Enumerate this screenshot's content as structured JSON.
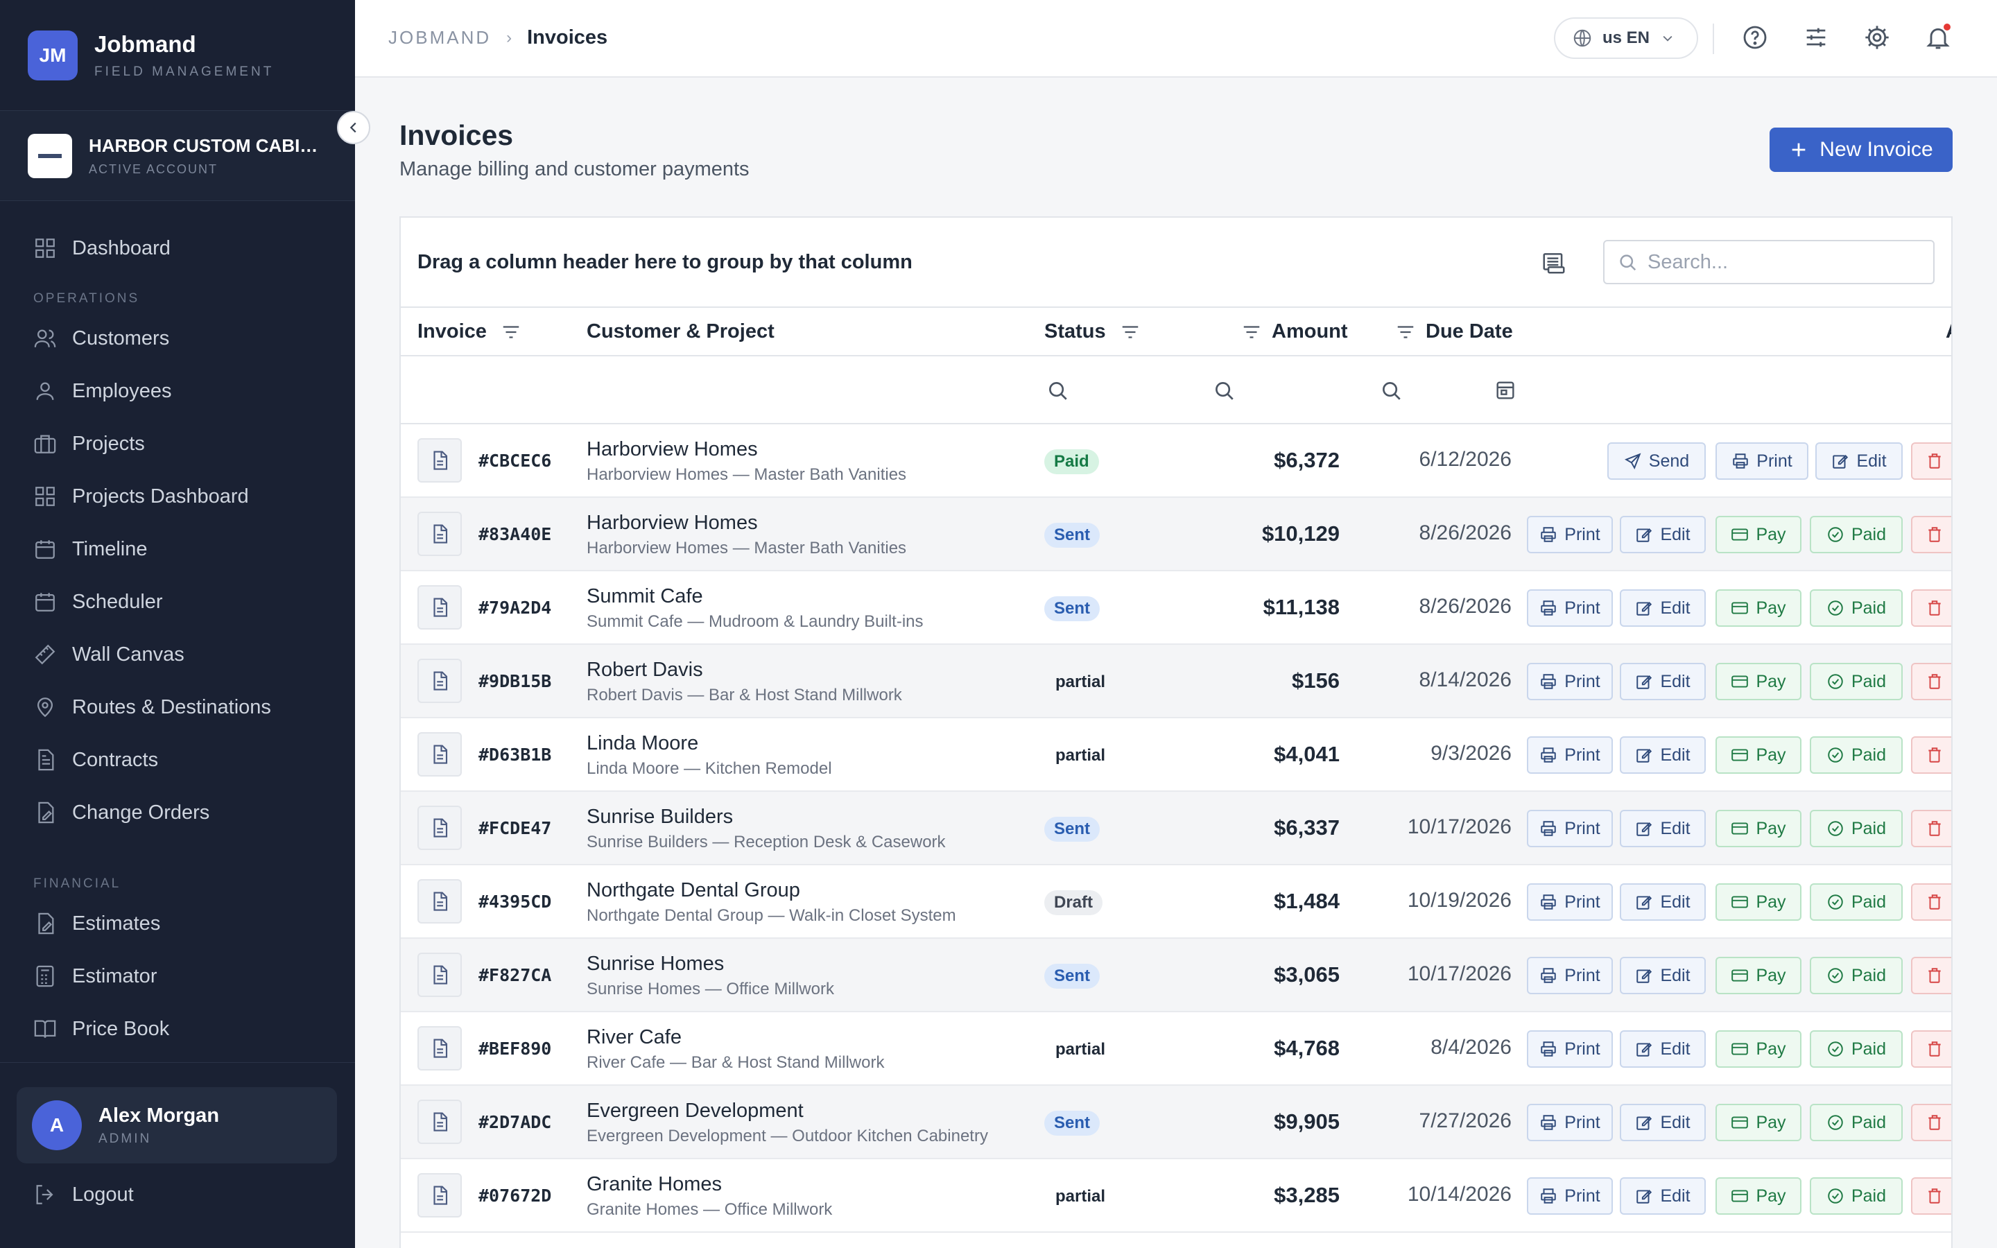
{
  "brand": {
    "initials": "JM",
    "name": "Jobmand",
    "subtitle": "FIELD MANAGEMENT"
  },
  "account": {
    "name": "HARBOR CUSTOM CABINETRY",
    "status": "ACTIVE ACCOUNT"
  },
  "nav": {
    "dashboard": "Dashboard",
    "section_operations": "OPERATIONS",
    "customers": "Customers",
    "employees": "Employees",
    "projects": "Projects",
    "projects_dashboard": "Projects Dashboard",
    "timeline": "Timeline",
    "scheduler": "Scheduler",
    "wall_canvas": "Wall Canvas",
    "routes": "Routes & Destinations",
    "contracts": "Contracts",
    "change_orders": "Change Orders",
    "section_financial": "FINANCIAL",
    "estimates": "Estimates",
    "estimator": "Estimator",
    "price_book": "Price Book"
  },
  "user": {
    "initial": "A",
    "name": "Alex Morgan",
    "role": "ADMIN",
    "logout": "Logout"
  },
  "topbar": {
    "crumb_root": "JOBMAND",
    "crumb_current": "Invoices",
    "language": "us EN"
  },
  "page": {
    "title": "Invoices",
    "subtitle": "Manage billing and customer payments",
    "new_button": "New Invoice"
  },
  "grid": {
    "group_hint": "Drag a column header here to group by that column",
    "search_placeholder": "Search...",
    "columns": {
      "invoice": "Invoice",
      "customer": "Customer & Project",
      "status": "Status",
      "amount": "Amount",
      "due": "Due Date",
      "actions_partial": "A"
    },
    "buttons": {
      "send": "Send",
      "print": "Print",
      "edit": "Edit",
      "pay": "Pay",
      "paid": "Paid"
    },
    "rows": [
      {
        "id": "#CBCEC6",
        "customer": "Harborview Homes",
        "project": "Harborview Homes — Master Bath Vanities",
        "status": "Paid",
        "amount": "$6,372",
        "due": "6/12/2026"
      },
      {
        "id": "#83A40E",
        "customer": "Harborview Homes",
        "project": "Harborview Homes — Master Bath Vanities",
        "status": "Sent",
        "amount": "$10,129",
        "due": "8/26/2026"
      },
      {
        "id": "#79A2D4",
        "customer": "Summit Cafe",
        "project": "Summit Cafe — Mudroom & Laundry Built-ins",
        "status": "Sent",
        "amount": "$11,138",
        "due": "8/26/2026"
      },
      {
        "id": "#9DB15B",
        "customer": "Robert Davis",
        "project": "Robert Davis — Bar & Host Stand Millwork",
        "status": "partial",
        "amount": "$156",
        "due": "8/14/2026"
      },
      {
        "id": "#D63B1B",
        "customer": "Linda Moore",
        "project": "Linda Moore — Kitchen Remodel",
        "status": "partial",
        "amount": "$4,041",
        "due": "9/3/2026"
      },
      {
        "id": "#FCDE47",
        "customer": "Sunrise Builders",
        "project": "Sunrise Builders — Reception Desk & Casework",
        "status": "Sent",
        "amount": "$6,337",
        "due": "10/17/2026"
      },
      {
        "id": "#4395CD",
        "customer": "Northgate Dental Group",
        "project": "Northgate Dental Group — Walk-in Closet System",
        "status": "Draft",
        "amount": "$1,484",
        "due": "10/19/2026"
      },
      {
        "id": "#F827CA",
        "customer": "Sunrise Homes",
        "project": "Sunrise Homes — Office Millwork",
        "status": "Sent",
        "amount": "$3,065",
        "due": "10/17/2026"
      },
      {
        "id": "#BEF890",
        "customer": "River Cafe",
        "project": "River Cafe — Bar & Host Stand Millwork",
        "status": "partial",
        "amount": "$4,768",
        "due": "8/4/2026"
      },
      {
        "id": "#2D7ADC",
        "customer": "Evergreen Development",
        "project": "Evergreen Development — Outdoor Kitchen Cabinetry",
        "status": "Sent",
        "amount": "$9,905",
        "due": "7/27/2026"
      },
      {
        "id": "#07672D",
        "customer": "Granite Homes",
        "project": "Granite Homes — Office Millwork",
        "status": "partial",
        "amount": "$3,285",
        "due": "10/14/2026"
      }
    ]
  },
  "colors": {
    "sidebar": "#1a2133",
    "accent": "#3a63c8",
    "paid": "#157a45",
    "sent": "#2a5db0",
    "delete": "#d64545"
  }
}
